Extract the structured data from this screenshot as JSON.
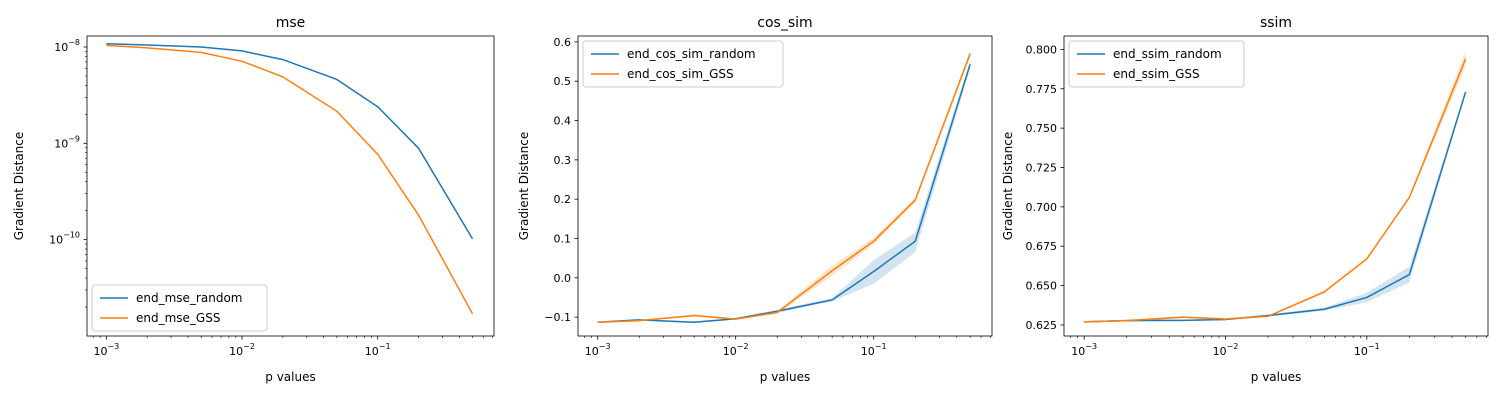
{
  "chart_data": [
    {
      "type": "line",
      "title": "mse",
      "xlabel": "p values",
      "ylabel": "Gradient Distance",
      "xscale": "log",
      "yscale": "log",
      "xlim": [
        0.00072,
        0.72
      ],
      "ylim": [
        1e-11,
        1.3e-08
      ],
      "x": [
        0.001,
        0.002,
        0.005,
        0.01,
        0.02,
        0.05,
        0.1,
        0.2,
        0.5
      ],
      "xticks": [
        {
          "base": "10",
          "exp": "−3",
          "value": 0.001
        },
        {
          "base": "10",
          "exp": "−2",
          "value": 0.01
        },
        {
          "base": "10",
          "exp": "−1",
          "value": 0.1
        }
      ],
      "yticks": [
        {
          "base": "10",
          "exp": "−10",
          "value": 1e-10
        },
        {
          "base": "10",
          "exp": "−9",
          "value": 1e-09
        },
        {
          "base": "10",
          "exp": "−8",
          "value": 1e-08
        }
      ],
      "legend": "lower-left",
      "series": [
        {
          "name": "end_mse_random",
          "color": "#1f77b4",
          "values": [
            1.08e-08,
            1.05e-08,
            1e-08,
            9.1e-09,
            7.4e-09,
            4.6e-09,
            2.4e-09,
            8.9e-10,
            1.02e-10
          ]
        },
        {
          "name": "end_mse_GSS",
          "color": "#ff7f0e",
          "values": [
            1.04e-08,
            9.8e-09,
            8.8e-09,
            7.1e-09,
            4.9e-09,
            2.15e-09,
            7.7e-10,
            1.8e-10,
            1.7e-11
          ]
        }
      ]
    },
    {
      "type": "line",
      "title": "cos_sim",
      "xlabel": "p values",
      "ylabel": "Gradient Distance",
      "xscale": "log",
      "yscale": "linear",
      "xlim": [
        0.00072,
        0.72
      ],
      "ylim": [
        -0.148,
        0.615
      ],
      "x": [
        0.001,
        0.002,
        0.005,
        0.01,
        0.02,
        0.05,
        0.1,
        0.2,
        0.5
      ],
      "xticks": [
        {
          "base": "10",
          "exp": "−3",
          "value": 0.001
        },
        {
          "base": "10",
          "exp": "−2",
          "value": 0.01
        },
        {
          "base": "10",
          "exp": "−1",
          "value": 0.1
        }
      ],
      "yticks": [
        {
          "label": "−0.1",
          "value": -0.1
        },
        {
          "label": "0.0",
          "value": 0.0
        },
        {
          "label": "0.1",
          "value": 0.1
        },
        {
          "label": "0.2",
          "value": 0.2
        },
        {
          "label": "0.3",
          "value": 0.3
        },
        {
          "label": "0.4",
          "value": 0.4
        },
        {
          "label": "0.5",
          "value": 0.5
        },
        {
          "label": "0.6",
          "value": 0.6
        }
      ],
      "legend": "top-left",
      "series": [
        {
          "name": "end_cos_sim_random",
          "color": "#1f77b4",
          "values": [
            -0.113,
            -0.107,
            -0.113,
            -0.104,
            -0.085,
            -0.056,
            0.016,
            0.093,
            0.543
          ],
          "band": [
            [
              -0.115,
              -0.111
            ],
            [
              -0.109,
              -0.105
            ],
            [
              -0.115,
              -0.111
            ],
            [
              -0.106,
              -0.102
            ],
            [
              -0.089,
              -0.081
            ],
            [
              -0.06,
              -0.052
            ],
            [
              -0.015,
              0.045
            ],
            [
              0.065,
              0.115
            ],
            [
              0.533,
              0.553
            ]
          ]
        },
        {
          "name": "end_cos_sim_GSS",
          "color": "#ff7f0e",
          "values": [
            -0.113,
            -0.109,
            -0.096,
            -0.105,
            -0.088,
            0.018,
            0.093,
            0.198,
            0.57
          ],
          "band": [
            [
              -0.115,
              -0.111
            ],
            [
              -0.111,
              -0.107
            ],
            [
              -0.099,
              -0.093
            ],
            [
              -0.107,
              -0.103
            ],
            [
              -0.092,
              -0.084
            ],
            [
              0.005,
              0.031
            ],
            [
              0.085,
              0.101
            ],
            [
              0.192,
              0.204
            ],
            [
              0.563,
              0.577
            ]
          ]
        }
      ]
    },
    {
      "type": "line",
      "title": "ssim",
      "xlabel": "p values",
      "ylabel": "Gradient Distance",
      "xscale": "log",
      "yscale": "linear",
      "xlim": [
        0.00072,
        0.72
      ],
      "ylim": [
        0.618,
        0.8085
      ],
      "x": [
        0.001,
        0.002,
        0.005,
        0.01,
        0.02,
        0.05,
        0.1,
        0.2,
        0.5
      ],
      "xticks": [
        {
          "base": "10",
          "exp": "−3",
          "value": 0.001
        },
        {
          "base": "10",
          "exp": "−2",
          "value": 0.01
        },
        {
          "base": "10",
          "exp": "−1",
          "value": 0.1
        }
      ],
      "yticks": [
        {
          "label": "0.625",
          "value": 0.625
        },
        {
          "label": "0.650",
          "value": 0.65
        },
        {
          "label": "0.675",
          "value": 0.675
        },
        {
          "label": "0.700",
          "value": 0.7
        },
        {
          "label": "0.725",
          "value": 0.725
        },
        {
          "label": "0.750",
          "value": 0.75
        },
        {
          "label": "0.775",
          "value": 0.775
        },
        {
          "label": "0.800",
          "value": 0.8
        }
      ],
      "legend": "top-left",
      "series": [
        {
          "name": "end_ssim_random",
          "color": "#1f77b4",
          "values": [
            0.627,
            0.6278,
            0.6279,
            0.6285,
            0.631,
            0.635,
            0.6425,
            0.657,
            0.773
          ],
          "band": [
            [
              0.6265,
              0.6275
            ],
            [
              0.6273,
              0.6283
            ],
            [
              0.6274,
              0.6284
            ],
            [
              0.628,
              0.629
            ],
            [
              0.6303,
              0.6317
            ],
            [
              0.634,
              0.636
            ],
            [
              0.6395,
              0.6455
            ],
            [
              0.652,
              0.662
            ],
            [
              0.772,
              0.774
            ]
          ]
        },
        {
          "name": "end_ssim_GSS",
          "color": "#ff7f0e",
          "values": [
            0.627,
            0.6278,
            0.63,
            0.6288,
            0.6305,
            0.646,
            0.667,
            0.706,
            0.794
          ],
          "band": [
            [
              0.6265,
              0.6275
            ],
            [
              0.6273,
              0.6283
            ],
            [
              0.6293,
              0.6307
            ],
            [
              0.6283,
              0.6293
            ],
            [
              0.63,
              0.631
            ],
            [
              0.6452,
              0.6468
            ],
            [
              0.6662,
              0.6678
            ],
            [
              0.7052,
              0.7068
            ],
            [
              0.789,
              0.799
            ]
          ]
        }
      ]
    }
  ]
}
